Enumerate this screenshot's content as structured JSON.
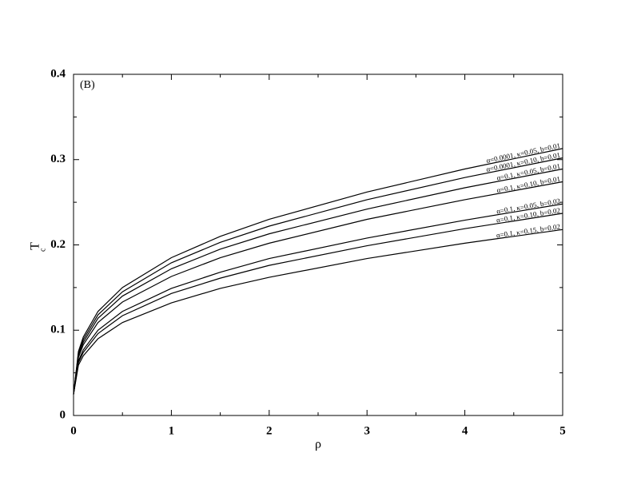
{
  "chart_data": {
    "type": "line",
    "annotation": "(B)",
    "xlabel": "ρ",
    "ylabel": "T",
    "ylabel_subscript": "c",
    "x": [
      0,
      0.05,
      0.1,
      0.25,
      0.5,
      1,
      1.5,
      2,
      3,
      4,
      5
    ],
    "series": [
      {
        "name": "α=0.0001, κ=0.05, b=0.01",
        "color": "#000000",
        "values": [
          0.025,
          0.075,
          0.092,
          0.122,
          0.15,
          0.185,
          0.21,
          0.23,
          0.262,
          0.289,
          0.313
        ]
      },
      {
        "name": "α=0.0001, κ=0.10, b=0.01",
        "color": "#000000",
        "values": [
          0.025,
          0.073,
          0.089,
          0.118,
          0.145,
          0.179,
          0.203,
          0.222,
          0.253,
          0.279,
          0.302
        ]
      },
      {
        "name": "α=0.1, κ=0.05, b=0.01",
        "color": "#000000",
        "values": [
          0.025,
          0.071,
          0.086,
          0.114,
          0.14,
          0.172,
          0.195,
          0.213,
          0.242,
          0.267,
          0.289
        ]
      },
      {
        "name": "α=0.1, κ=0.10, b=0.01",
        "color": "#000000",
        "values": [
          0.025,
          0.068,
          0.083,
          0.109,
          0.133,
          0.163,
          0.185,
          0.202,
          0.23,
          0.253,
          0.274
        ]
      },
      {
        "name": "α=0.1, κ=0.05, b=0.02",
        "color": "#000000",
        "values": [
          0.025,
          0.064,
          0.077,
          0.1,
          0.122,
          0.149,
          0.168,
          0.184,
          0.208,
          0.229,
          0.248
        ]
      },
      {
        "name": "α=0.1, κ=0.10, b=0.02",
        "color": "#000000",
        "values": [
          0.025,
          0.062,
          0.074,
          0.096,
          0.117,
          0.143,
          0.161,
          0.176,
          0.199,
          0.219,
          0.237
        ]
      },
      {
        "name": "α=0.1, κ=0.15, b=0.02",
        "color": "#000000",
        "values": [
          0.025,
          0.059,
          0.07,
          0.09,
          0.109,
          0.132,
          0.149,
          0.162,
          0.184,
          0.202,
          0.218
        ]
      }
    ],
    "xlim": [
      0,
      5
    ],
    "xticks": [
      0,
      1,
      2,
      3,
      4,
      5
    ],
    "xminorticks": [
      0.5,
      1.5,
      2.5,
      3.5,
      4.5
    ],
    "ylim": [
      0,
      0.4
    ],
    "yticks": [
      0,
      0.1,
      0.2,
      0.3,
      0.4
    ],
    "yminorticks": [
      0.05,
      0.15,
      0.25,
      0.35
    ],
    "grid": false
  }
}
